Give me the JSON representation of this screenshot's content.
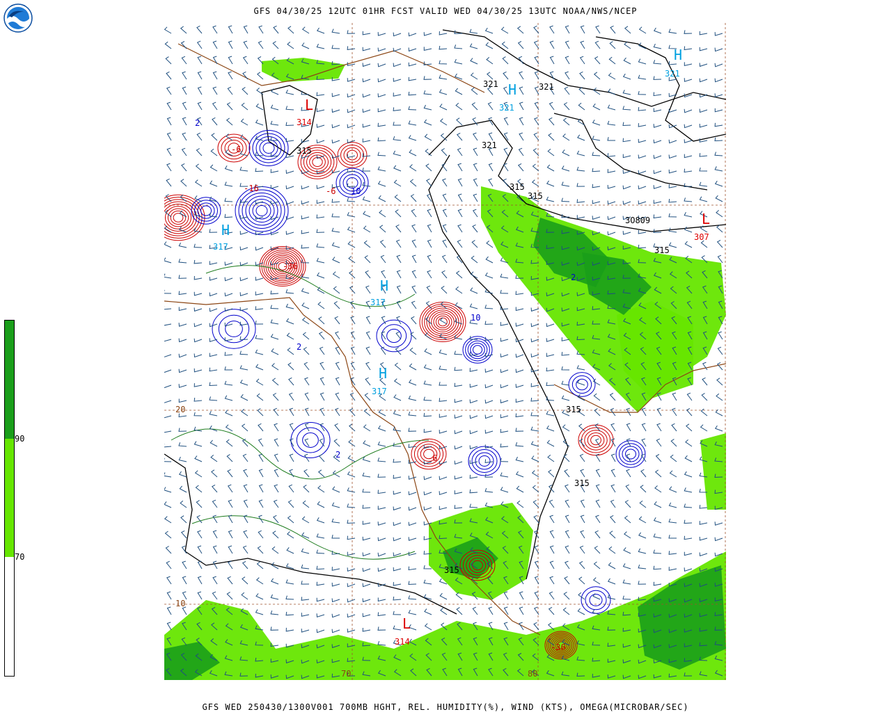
{
  "header": {
    "title": "GFS 04/30/25 12UTC 01HR FCST VALID WED 04/30/25 13UTC NOAA/NWS/NCEP"
  },
  "footer": {
    "title": "GFS WED 250430/1300V001 700MB HGHT, REL. HUMIDITY(%), WIND (KTS), OMEGA(MICROBAR/SEC)"
  },
  "logo": {
    "text": "NOAA",
    "icon": "noaa-logo"
  },
  "colorbar": {
    "labels": {
      "low": "70",
      "high": "90"
    },
    "colors": {
      "dark_green": "#1a9e1a",
      "light_green": "#66e600",
      "white": "#ffffff"
    }
  },
  "map": {
    "colors": {
      "height_contour": "#000000",
      "omega_positive": "#0000cc",
      "omega_negative": "#cc0000",
      "wind_barbs": "#1f4f7f",
      "coastline": "#8b4513",
      "rh_contour": "#1a7a1a",
      "gridline": "#a0522d",
      "centers": "#00a0e0"
    },
    "height_labels": {
      "h315_a": "315",
      "h315_b": "315",
      "h315_c": "315",
      "h315_d": "315",
      "h315_e": "315",
      "h315_f": "315",
      "h315_g": "315",
      "h321_a": "321",
      "h321_b": "321",
      "h321_c": "321",
      "h309": "3O809"
    },
    "centers": {
      "L1": "L",
      "L1_val": "314",
      "L2": "L",
      "L2_val": "314",
      "L3": "L",
      "L3_val": "307",
      "H1": "H",
      "H1_val": "321",
      "H2": "H",
      "H2_val": "321",
      "H3": "H",
      "H3_val": "317",
      "H4": "H",
      "H4_val": "317",
      "H5": "H",
      "H5_val": "317"
    },
    "omega_labels": {
      "p2": "2",
      "p6": "6",
      "p10": "10",
      "n2": "-2",
      "n6": "-6",
      "n16": "-16",
      "n36": "-36"
    },
    "gridline_labels": {
      "lat20": "20",
      "lat10": "10",
      "lon70": "70",
      "lon80": "80"
    }
  }
}
